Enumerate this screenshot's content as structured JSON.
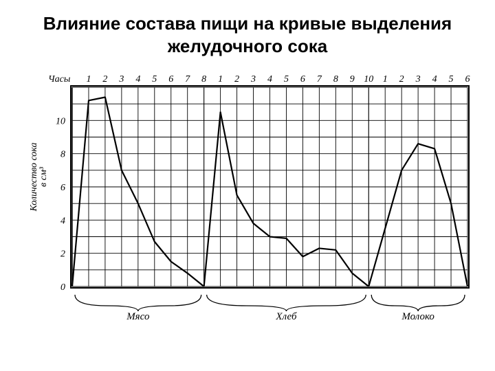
{
  "title": "Влияние состава пищи на кривые выделения желудочного сока",
  "chart": {
    "type": "line",
    "background_color": "#ffffff",
    "grid_color": "#000000",
    "line_color": "#000000",
    "frame_color": "#000000",
    "line_width": 2.2,
    "grid_width": 0.9,
    "x_axis_top_label": "Часы",
    "y_axis_label_line1": "Количество сока",
    "y_axis_label_line2": "в см³",
    "ylim": [
      0,
      12
    ],
    "y_ticks": [
      0,
      2,
      4,
      6,
      8,
      10
    ],
    "tick_fontsize": 14,
    "label_fontsize": 14,
    "sections": [
      {
        "name": "Мясо",
        "x_ticks": [
          1,
          2,
          3,
          4,
          5,
          6,
          7,
          8
        ],
        "data_x": [
          0,
          1,
          2,
          3,
          4,
          5,
          6,
          7,
          8
        ],
        "data_y": [
          0,
          11.2,
          11.4,
          7.0,
          5.0,
          2.7,
          1.5,
          0.8,
          0
        ]
      },
      {
        "name": "Хлеб",
        "x_ticks": [
          1,
          2,
          3,
          4,
          5,
          6,
          7,
          8,
          9,
          10
        ],
        "data_x": [
          0,
          1,
          2,
          3,
          4,
          5,
          6,
          7,
          8,
          9,
          10
        ],
        "data_y": [
          0,
          10.5,
          5.5,
          3.8,
          3.0,
          2.9,
          1.8,
          2.3,
          2.2,
          0.8,
          0
        ]
      },
      {
        "name": "Молоко",
        "x_ticks": [
          1,
          2,
          3,
          4,
          5,
          6
        ],
        "data_x": [
          0,
          1,
          2,
          3,
          4,
          5,
          6
        ],
        "data_y": [
          0,
          3.5,
          7.0,
          8.6,
          8.3,
          5.0,
          0
        ]
      }
    ]
  }
}
